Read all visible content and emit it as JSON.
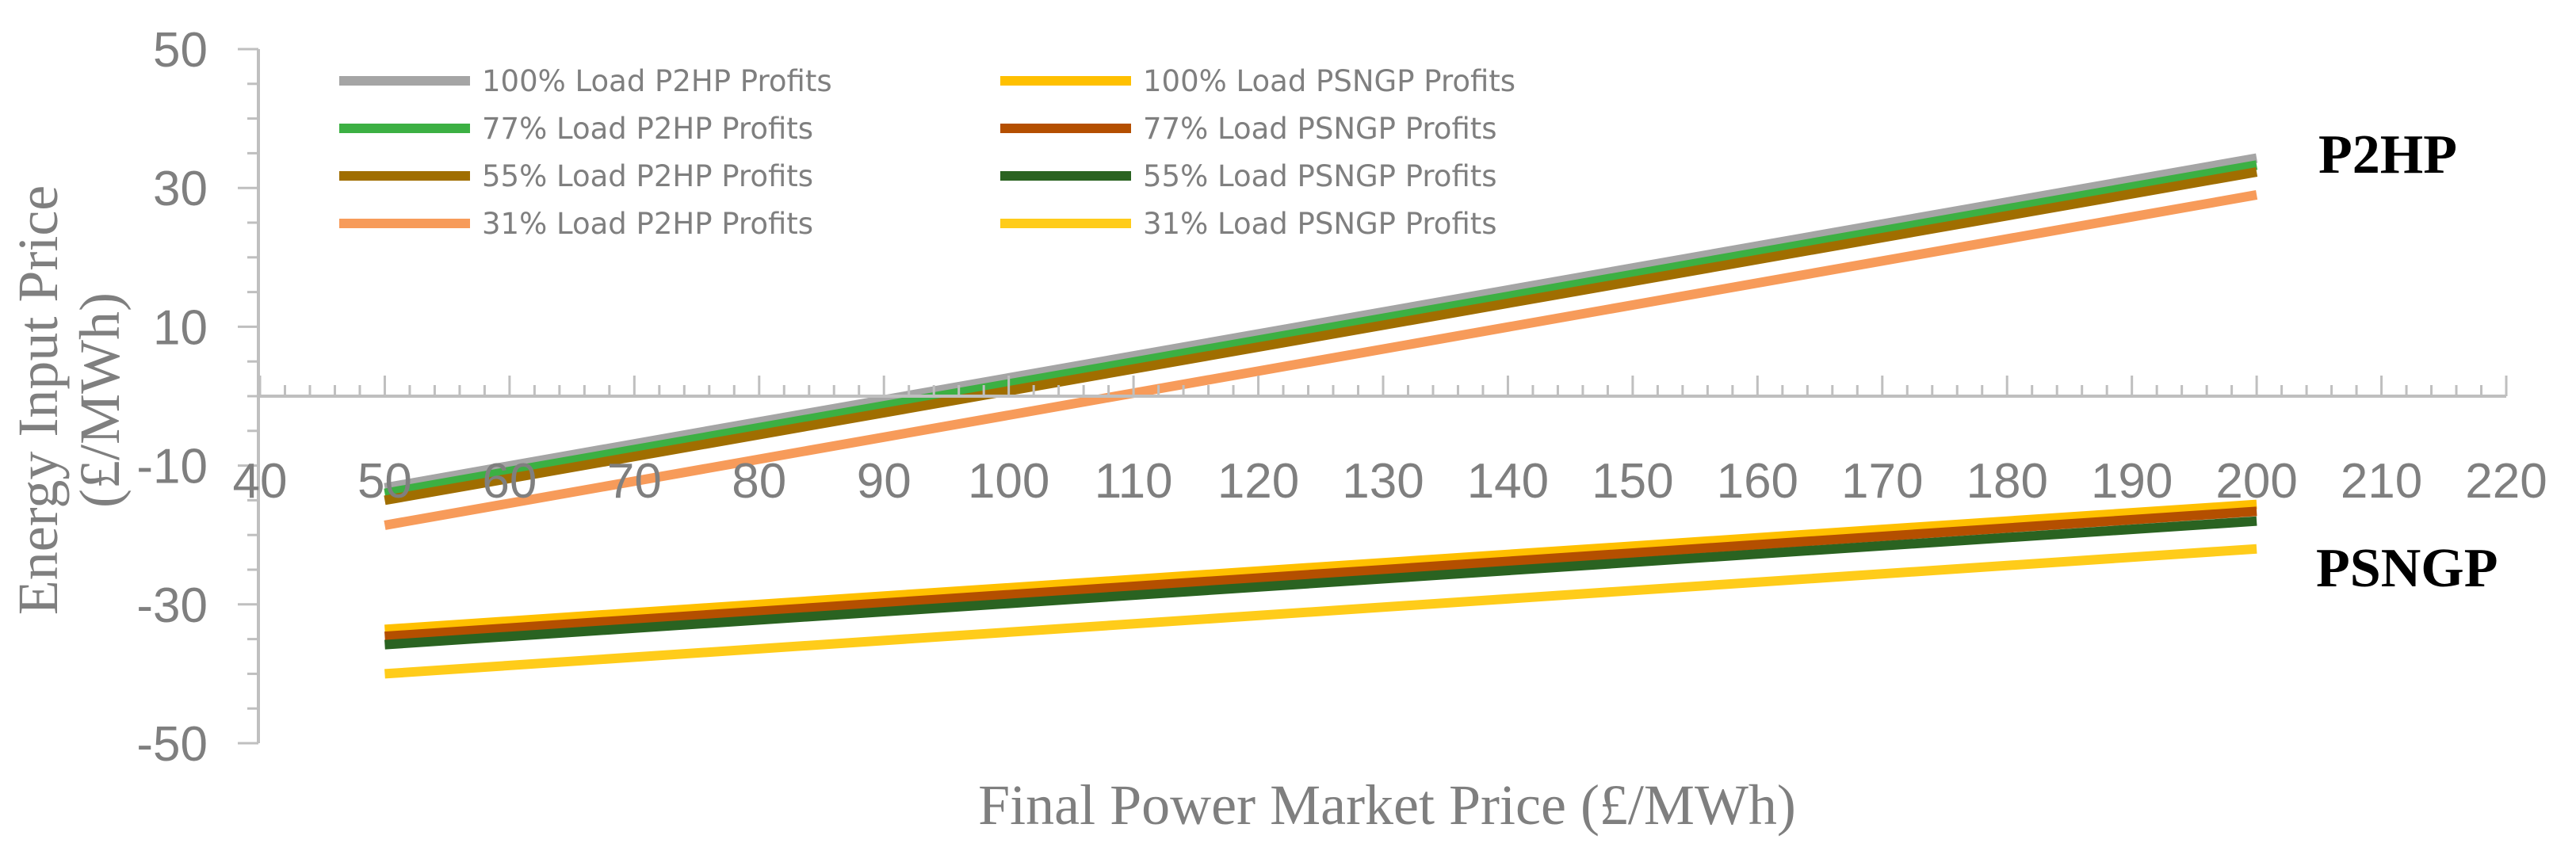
{
  "chart_data": {
    "type": "line",
    "title": "",
    "xlabel": "Final Power Market Price (£/MWh)",
    "ylabel_line1": "Energy Input Price",
    "ylabel_line2": "(£/MWh)",
    "xlim": [
      40,
      220
    ],
    "ylim": [
      -50,
      50
    ],
    "x_ticks": [
      "40",
      "50",
      "60",
      "70",
      "80",
      "90",
      "100",
      "110",
      "120",
      "130",
      "140",
      "150",
      "160",
      "170",
      "180",
      "190",
      "200",
      "210",
      "220"
    ],
    "y_ticks": [
      "50",
      "30",
      "10",
      "-10",
      "-30",
      "-50"
    ],
    "grid": false,
    "legend_position": "top-left",
    "x": [
      50,
      200
    ],
    "series": [
      {
        "name": "100% Load P2HP Profits",
        "color": "#a5a5a5",
        "values": [
          -13.2,
          34.3
        ]
      },
      {
        "name": "100% Load PSNGP Profits",
        "color": "#ffc000",
        "values": [
          -33.6,
          -15.6
        ]
      },
      {
        "name": "77% Load P2HP Profits",
        "color": "#3cb043",
        "values": [
          -14.0,
          33.3
        ]
      },
      {
        "name": "77% Load PSNGP Profits",
        "color": "#b44f00",
        "values": [
          -34.6,
          -16.6
        ]
      },
      {
        "name": "55% Load P2HP Profits",
        "color": "#a06e00",
        "values": [
          -15.0,
          32.3
        ]
      },
      {
        "name": "55% Load PSNGP Profits",
        "color": "#2a6321",
        "values": [
          -35.8,
          -18.0
        ]
      },
      {
        "name": "31% Load P2HP Profits",
        "color": "#f79b5a",
        "values": [
          -18.6,
          29.0
        ]
      },
      {
        "name": "31% Load PSNGP Profits",
        "color": "#ffcc1a",
        "values": [
          -40.0,
          -22.0
        ]
      }
    ],
    "annotations": [
      "P2HP",
      "PSNGP"
    ]
  }
}
